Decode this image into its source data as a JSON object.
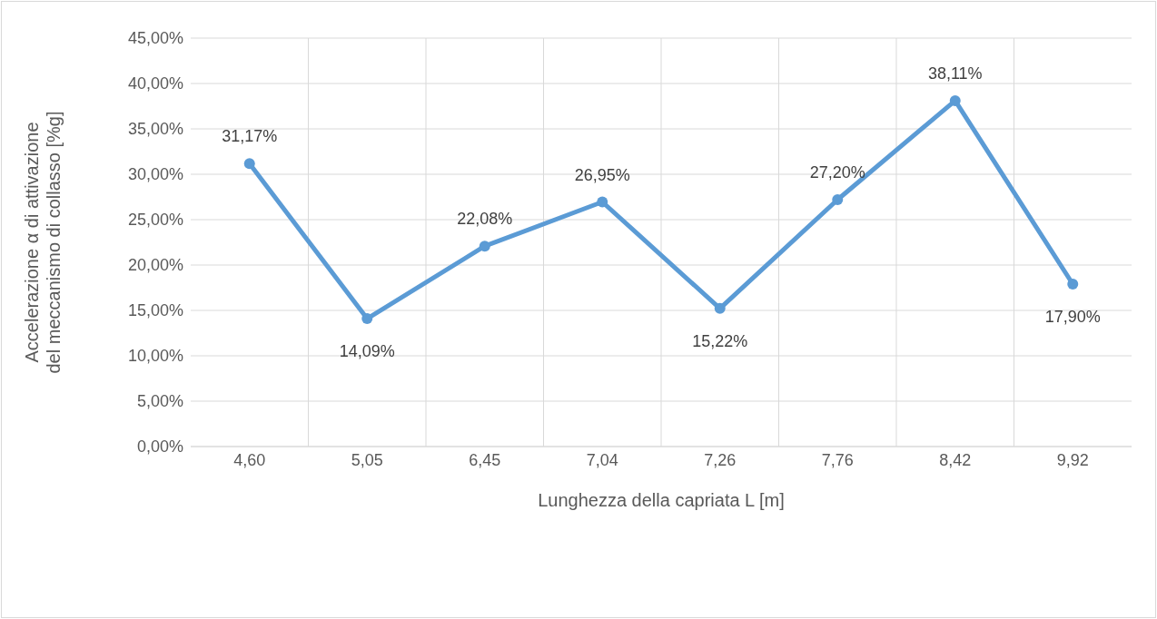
{
  "chart_data": {
    "type": "line",
    "xlabel": "Lunghezza della capriata L [m]",
    "ylabel": "Accelerazione α di attivazione\ndel meccanismo di collasso [%g]",
    "categories": [
      "4,60",
      "5,05",
      "6,45",
      "7,04",
      "7,26",
      "7,76",
      "8,42",
      "9,92"
    ],
    "series": [
      {
        "color": "#5b9bd5",
        "values": [
          31.17,
          14.09,
          22.08,
          26.95,
          15.22,
          27.2,
          38.11,
          17.9
        ],
        "value_labels": [
          "31,17%",
          "14,09%",
          "22,08%",
          "26,95%",
          "15,22%",
          "27,20%",
          "38,11%",
          "17,90%"
        ]
      }
    ],
    "ylim": [
      0,
      45
    ],
    "yticks": [
      {
        "value": 0,
        "label": "0,00%"
      },
      {
        "value": 5,
        "label": "5,00%"
      },
      {
        "value": 10,
        "label": "10,00%"
      },
      {
        "value": 15,
        "label": "15,00%"
      },
      {
        "value": 20,
        "label": "20,00%"
      },
      {
        "value": 25,
        "label": "25,00%"
      },
      {
        "value": 30,
        "label": "30,00%"
      },
      {
        "value": 35,
        "label": "35,00%"
      },
      {
        "value": 40,
        "label": "40,00%"
      },
      {
        "value": 45,
        "label": "45,00%"
      }
    ],
    "grid": true,
    "marker": "circle",
    "line_style": "solid",
    "legend": false
  }
}
